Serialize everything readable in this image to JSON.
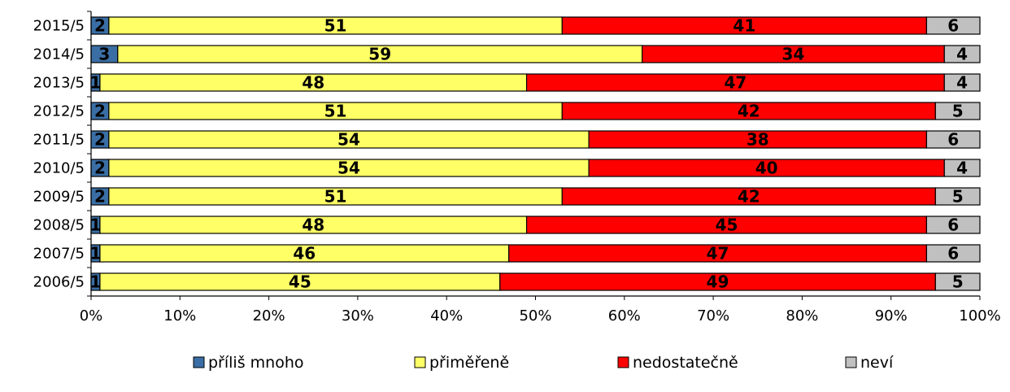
{
  "chart_data": {
    "type": "bar",
    "orientation": "horizontal",
    "stacked": "percent",
    "categories": [
      "2015/5",
      "2014/5",
      "2013/5",
      "2012/5",
      "2011/5",
      "2010/5",
      "2009/5",
      "2008/5",
      "2007/5",
      "2006/5"
    ],
    "series": [
      {
        "name": "příliš mnoho",
        "color": "#3a6ea5",
        "values": [
          2,
          3,
          1,
          2,
          2,
          2,
          2,
          1,
          1,
          1
        ]
      },
      {
        "name": "přiměřeně",
        "color": "#ffff66",
        "values": [
          51,
          59,
          48,
          51,
          54,
          54,
          51,
          48,
          46,
          45
        ]
      },
      {
        "name": "nedostatečně",
        "color": "#ff0000",
        "values": [
          41,
          34,
          47,
          42,
          38,
          40,
          42,
          45,
          47,
          49
        ]
      },
      {
        "name": "neví",
        "color": "#c0c0c0",
        "values": [
          6,
          4,
          4,
          5,
          6,
          4,
          5,
          6,
          6,
          5
        ]
      }
    ],
    "x_ticks": [
      "0%",
      "10%",
      "20%",
      "30%",
      "40%",
      "50%",
      "60%",
      "70%",
      "80%",
      "90%",
      "100%"
    ],
    "xlim": [
      0,
      100
    ],
    "grid": false,
    "legend": "bottom"
  }
}
